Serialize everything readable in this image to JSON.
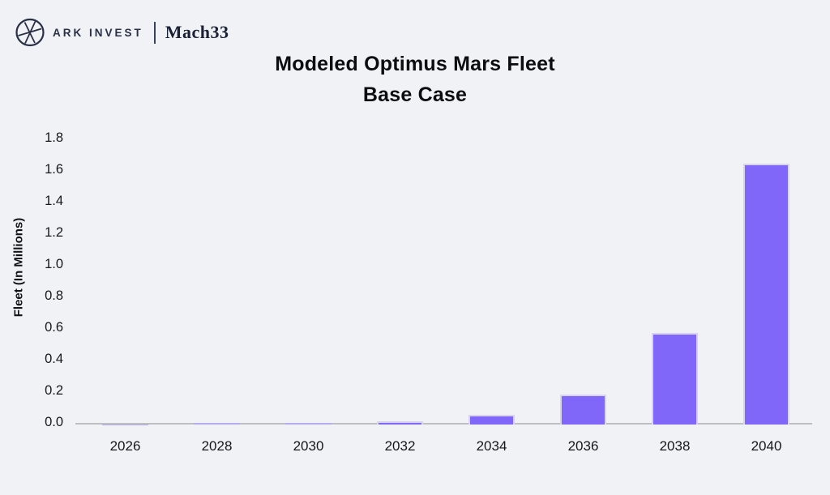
{
  "header": {
    "logo_icon": "ark-globe-icon",
    "brand_primary": "ARK INVEST",
    "brand_secondary": "Mach33"
  },
  "title": {
    "line1": "Modeled Optimus Mars Fleet",
    "line2": "Base Case"
  },
  "chart_data": {
    "type": "bar",
    "title": "Modeled Optimus Mars Fleet",
    "subtitle": "Base Case",
    "categories": [
      "2026",
      "2028",
      "2030",
      "2032",
      "2034",
      "2036",
      "2038",
      "2040"
    ],
    "values": [
      0.002,
      0.008,
      0.012,
      0.022,
      0.06,
      0.19,
      0.58,
      1.65
    ],
    "xlabel": "",
    "ylabel": "Fleet (In Millions)",
    "ylim": [
      0,
      1.8
    ],
    "y_tick_labels": [
      "0.0",
      "0.2",
      "0.4",
      "0.6",
      "0.8",
      "1.0",
      "1.2",
      "1.4",
      "1.6",
      "1.8"
    ],
    "grid": false,
    "legend": false,
    "colors": {
      "bar": "#8067FA",
      "bar_edge": "#D8D3EE",
      "axis_line": "#BDBFC3",
      "background": "#F0F2F5",
      "text": "#15161A"
    }
  }
}
